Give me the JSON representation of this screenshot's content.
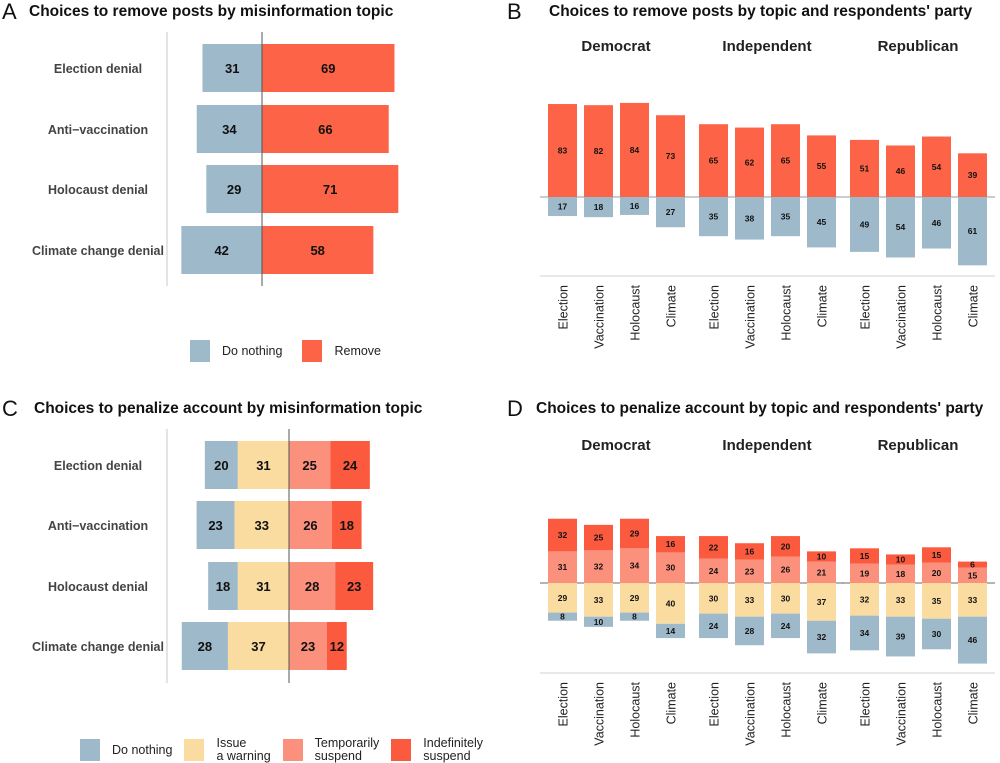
{
  "colors": {
    "do_nothing": "#9DB9CA",
    "remove": "#FD6346",
    "issue_warning": "#FADBA0",
    "temporarily_suspend": "#FB917D",
    "indefinitely_suspend": "#FB5A3E"
  },
  "panels": {
    "A": {
      "letter": "A",
      "title": "Choices to remove posts by misinformation topic"
    },
    "B": {
      "letter": "B",
      "title": "Choices to remove posts by topic and respondents' party"
    },
    "C": {
      "letter": "C",
      "title": "Choices to penalize account by misinformation topic"
    },
    "D": {
      "letter": "D",
      "title": "Choices to penalize account by topic and respondents' party"
    }
  },
  "legend_ab": [
    {
      "label": "Do nothing",
      "color": "#9DB9CA"
    },
    {
      "label": "Remove",
      "color": "#FD6346"
    }
  ],
  "legend_cd": [
    {
      "label": "Do nothing",
      "color": "#9DB9CA"
    },
    {
      "label": "Issue\na warning",
      "color": "#FADBA0"
    },
    {
      "label": "Temporarily\nsuspend",
      "color": "#FB917D"
    },
    {
      "label": "Indefinitely\nsuspend",
      "color": "#FB5A3E"
    }
  ],
  "chart_data": [
    {
      "id": "A",
      "type": "bar",
      "orientation": "horizontal-diverging",
      "title": "Choices to remove posts by misinformation topic",
      "categories": [
        "Election denial",
        "Anti−vaccination",
        "Holocaust denial",
        "Climate change denial"
      ],
      "series": [
        {
          "name": "Do nothing",
          "side": "left",
          "values": [
            31,
            34,
            29,
            42
          ]
        },
        {
          "name": "Remove",
          "side": "right",
          "values": [
            69,
            66,
            71,
            58
          ]
        }
      ],
      "legend": "bottom",
      "grid": false
    },
    {
      "id": "B",
      "type": "bar",
      "orientation": "vertical-diverging",
      "title": "Choices to remove posts by topic and respondents' party",
      "facets": [
        "Democrat",
        "Independent",
        "Republican"
      ],
      "categories": [
        "Election",
        "Vaccination",
        "Holocaust",
        "Climate"
      ],
      "series": [
        {
          "name": "Remove",
          "side": "up",
          "values": [
            [
              83,
              82,
              84,
              73
            ],
            [
              65,
              62,
              65,
              55
            ],
            [
              51,
              46,
              54,
              39
            ]
          ]
        },
        {
          "name": "Do nothing",
          "side": "down",
          "values": [
            [
              17,
              18,
              16,
              27
            ],
            [
              35,
              38,
              35,
              45
            ],
            [
              49,
              54,
              46,
              61
            ]
          ]
        }
      ],
      "grid": false
    },
    {
      "id": "C",
      "type": "bar",
      "orientation": "horizontal-diverging-stacked",
      "title": "Choices to penalize account by misinformation topic",
      "categories": [
        "Election denial",
        "Anti−vaccination",
        "Holocaust denial",
        "Climate change denial"
      ],
      "series": [
        {
          "name": "Do nothing",
          "side": "left-outer",
          "values": [
            20,
            23,
            18,
            28
          ]
        },
        {
          "name": "Issue a warning",
          "side": "left-inner",
          "values": [
            31,
            33,
            31,
            37
          ]
        },
        {
          "name": "Temporarily suspend",
          "side": "right-inner",
          "values": [
            25,
            26,
            28,
            23
          ]
        },
        {
          "name": "Indefinitely suspend",
          "side": "right-outer",
          "values": [
            24,
            18,
            23,
            12
          ]
        }
      ],
      "legend": "bottom",
      "grid": false
    },
    {
      "id": "D",
      "type": "bar",
      "orientation": "vertical-diverging-stacked",
      "title": "Choices to penalize account by topic and respondents' party",
      "facets": [
        "Democrat",
        "Independent",
        "Republican"
      ],
      "categories": [
        "Election",
        "Vaccination",
        "Holocaust",
        "Climate"
      ],
      "series": [
        {
          "name": "Temporarily suspend",
          "side": "up-inner",
          "values": [
            [
              31,
              32,
              34,
              30
            ],
            [
              24,
              23,
              26,
              21
            ],
            [
              19,
              18,
              20,
              15
            ]
          ]
        },
        {
          "name": "Indefinitely suspend",
          "side": "up-outer",
          "values": [
            [
              32,
              25,
              29,
              16
            ],
            [
              22,
              16,
              20,
              10
            ],
            [
              15,
              10,
              15,
              6
            ]
          ]
        },
        {
          "name": "Issue a warning",
          "side": "down-inner",
          "values": [
            [
              29,
              33,
              29,
              40
            ],
            [
              30,
              33,
              30,
              37
            ],
            [
              32,
              33,
              35,
              33
            ]
          ]
        },
        {
          "name": "Do nothing",
          "side": "down-outer",
          "values": [
            [
              8,
              10,
              8,
              14
            ],
            [
              24,
              28,
              24,
              32
            ],
            [
              34,
              39,
              30,
              46
            ]
          ]
        }
      ],
      "grid": false
    }
  ]
}
